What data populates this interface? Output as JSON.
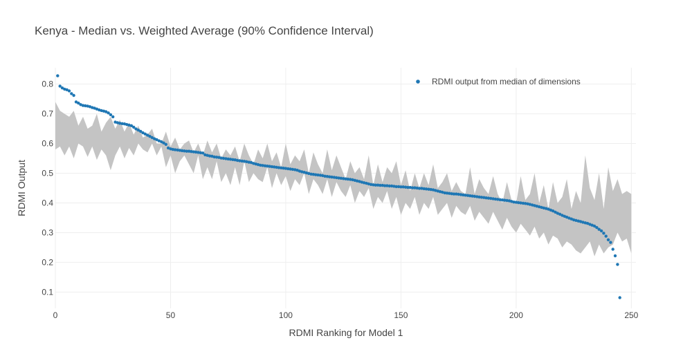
{
  "chart_data": {
    "type": "scatter",
    "title": "Kenya - Median vs. Weighted Average (90% Confidence Interval)",
    "xlabel": "RDMI Ranking for Model 1",
    "ylabel": "RDMI Output",
    "xlim": [
      0,
      252
    ],
    "ylim": [
      0.045,
      0.855
    ],
    "x_ticks": [
      0,
      50,
      100,
      150,
      200,
      250
    ],
    "y_ticks": [
      0.1,
      0.2,
      0.3,
      0.4,
      0.5,
      0.6,
      0.7,
      0.8
    ],
    "legend": {
      "position": "top-right",
      "entries": [
        "RDMI output from median of dimensions"
      ]
    },
    "series": [
      {
        "name": "RDMI output from median of dimensions",
        "kind": "points",
        "color": "#1f77b4",
        "x_start": 1,
        "y_points": [
          0.828,
          0.793,
          0.787,
          0.783,
          0.781,
          0.777,
          0.768,
          0.762,
          0.74,
          0.736,
          0.731,
          0.728,
          0.727,
          0.726,
          0.724,
          0.721,
          0.719,
          0.716,
          0.713,
          0.711,
          0.709,
          0.707,
          0.703,
          0.697,
          0.69,
          0.672,
          0.67,
          0.668,
          0.667,
          0.666,
          0.664,
          0.662,
          0.66,
          0.655,
          0.649,
          0.645,
          0.641,
          0.636,
          0.632,
          0.628,
          0.624,
          0.62,
          0.616,
          0.613,
          0.609,
          0.606,
          0.602,
          0.597,
          0.585,
          0.582,
          0.58,
          0.579,
          0.578,
          0.577,
          0.576,
          0.575,
          0.574,
          0.574,
          0.573,
          0.572,
          0.571,
          0.57,
          0.569,
          0.568,
          0.562,
          0.56,
          0.558,
          0.557,
          0.555,
          0.554,
          0.553,
          0.551,
          0.55,
          0.549,
          0.548,
          0.547,
          0.546,
          0.545,
          0.543,
          0.542,
          0.541,
          0.54,
          0.539,
          0.537,
          0.536,
          0.533,
          0.531,
          0.529,
          0.527,
          0.526,
          0.525,
          0.524,
          0.523,
          0.522,
          0.521,
          0.52,
          0.519,
          0.518,
          0.517,
          0.516,
          0.515,
          0.514,
          0.513,
          0.512,
          0.51,
          0.507,
          0.505,
          0.503,
          0.501,
          0.499,
          0.497,
          0.496,
          0.495,
          0.494,
          0.493,
          0.492,
          0.49,
          0.489,
          0.488,
          0.487,
          0.486,
          0.485,
          0.484,
          0.483,
          0.482,
          0.481,
          0.48,
          0.479,
          0.478,
          0.476,
          0.474,
          0.472,
          0.47,
          0.468,
          0.466,
          0.464,
          0.462,
          0.461,
          0.46,
          0.46,
          0.459,
          0.459,
          0.458,
          0.458,
          0.457,
          0.457,
          0.456,
          0.455,
          0.455,
          0.454,
          0.454,
          0.453,
          0.452,
          0.452,
          0.451,
          0.451,
          0.45,
          0.449,
          0.449,
          0.448,
          0.447,
          0.446,
          0.445,
          0.444,
          0.442,
          0.44,
          0.438,
          0.436,
          0.434,
          0.433,
          0.432,
          0.431,
          0.43,
          0.43,
          0.429,
          0.428,
          0.427,
          0.426,
          0.425,
          0.424,
          0.423,
          0.422,
          0.421,
          0.42,
          0.419,
          0.418,
          0.417,
          0.416,
          0.415,
          0.414,
          0.413,
          0.412,
          0.411,
          0.41,
          0.409,
          0.408,
          0.407,
          0.405,
          0.403,
          0.402,
          0.401,
          0.4,
          0.399,
          0.398,
          0.397,
          0.395,
          0.393,
          0.391,
          0.389,
          0.387,
          0.385,
          0.383,
          0.381,
          0.379,
          0.376,
          0.373,
          0.369,
          0.365,
          0.362,
          0.358,
          0.355,
          0.352,
          0.349,
          0.346,
          0.343,
          0.341,
          0.339,
          0.337,
          0.335,
          0.333,
          0.331,
          0.328,
          0.325,
          0.322,
          0.317,
          0.311,
          0.306,
          0.298,
          0.288,
          0.276,
          0.267,
          0.244,
          0.222,
          0.193,
          0.081
        ]
      },
      {
        "name": "90% Confidence Interval",
        "kind": "band",
        "color": "#c4c4c4",
        "x_start": 0,
        "x_step": 2,
        "lower": [
          0.58,
          0.59,
          0.56,
          0.59,
          0.55,
          0.6,
          0.59,
          0.555,
          0.59,
          0.545,
          0.58,
          0.56,
          0.51,
          0.56,
          0.59,
          0.55,
          0.585,
          0.56,
          0.6,
          0.58,
          0.57,
          0.6,
          0.56,
          0.59,
          0.52,
          0.56,
          0.5,
          0.54,
          0.56,
          0.53,
          0.5,
          0.56,
          0.48,
          0.52,
          0.48,
          0.54,
          0.47,
          0.5,
          0.46,
          0.52,
          0.46,
          0.54,
          0.47,
          0.5,
          0.48,
          0.47,
          0.52,
          0.45,
          0.5,
          0.46,
          0.49,
          0.44,
          0.48,
          0.46,
          0.5,
          0.43,
          0.48,
          0.46,
          0.43,
          0.48,
          0.42,
          0.47,
          0.44,
          0.42,
          0.46,
          0.4,
          0.44,
          0.42,
          0.45,
          0.38,
          0.42,
          0.4,
          0.44,
          0.38,
          0.42,
          0.36,
          0.4,
          0.38,
          0.42,
          0.36,
          0.4,
          0.38,
          0.42,
          0.36,
          0.38,
          0.4,
          0.35,
          0.39,
          0.37,
          0.36,
          0.39,
          0.34,
          0.37,
          0.35,
          0.33,
          0.37,
          0.34,
          0.31,
          0.35,
          0.32,
          0.3,
          0.33,
          0.31,
          0.29,
          0.32,
          0.28,
          0.3,
          0.26,
          0.29,
          0.28,
          0.25,
          0.27,
          0.26,
          0.24,
          0.23,
          0.25,
          0.27,
          0.22,
          0.26,
          0.23,
          0.25,
          0.26,
          0.3,
          0.27,
          0.28,
          0.23
        ],
        "upper": [
          0.74,
          0.71,
          0.7,
          0.69,
          0.71,
          0.66,
          0.69,
          0.65,
          0.66,
          0.7,
          0.64,
          0.67,
          0.69,
          0.65,
          0.68,
          0.64,
          0.67,
          0.63,
          0.66,
          0.62,
          0.63,
          0.65,
          0.6,
          0.6,
          0.64,
          0.59,
          0.62,
          0.58,
          0.6,
          0.61,
          0.57,
          0.6,
          0.56,
          0.61,
          0.57,
          0.6,
          0.55,
          0.58,
          0.56,
          0.59,
          0.54,
          0.6,
          0.56,
          0.53,
          0.58,
          0.55,
          0.6,
          0.54,
          0.57,
          0.52,
          0.6,
          0.53,
          0.56,
          0.54,
          0.58,
          0.5,
          0.57,
          0.53,
          0.5,
          0.58,
          0.51,
          0.56,
          0.52,
          0.48,
          0.54,
          0.5,
          0.52,
          0.48,
          0.56,
          0.46,
          0.53,
          0.47,
          0.52,
          0.5,
          0.54,
          0.46,
          0.51,
          0.44,
          0.5,
          0.45,
          0.5,
          0.46,
          0.53,
          0.45,
          0.47,
          0.5,
          0.44,
          0.47,
          0.44,
          0.43,
          0.52,
          0.43,
          0.48,
          0.45,
          0.43,
          0.49,
          0.43,
          0.4,
          0.47,
          0.41,
          0.4,
          0.49,
          0.41,
          0.43,
          0.5,
          0.4,
          0.46,
          0.38,
          0.47,
          0.4,
          0.42,
          0.48,
          0.38,
          0.44,
          0.4,
          0.56,
          0.45,
          0.41,
          0.5,
          0.38,
          0.52,
          0.44,
          0.48,
          0.43,
          0.44,
          0.43
        ]
      }
    ]
  }
}
